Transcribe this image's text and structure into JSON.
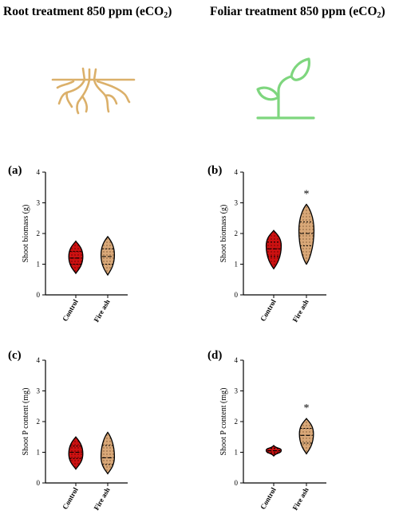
{
  "headings": {
    "left": {
      "text": "Root treatment 850 ppm (eCO",
      "sub": "2",
      "close": ")"
    },
    "right": {
      "text": "Foliar treatment 850 ppm (eCO",
      "sub": "2",
      "close": ")"
    }
  },
  "icons": {
    "left": "roots-icon",
    "right": "plant-sprout-icon"
  },
  "colors": {
    "control": "#cc1111",
    "fire_ash": "#d9a878",
    "root_icon": "#dbb06a",
    "plant_icon": "#7ed67e"
  },
  "chart_data": [
    {
      "panel": "(a)",
      "type": "violin",
      "ylabel": "Shoot biomass (g)",
      "ylim": [
        0,
        4
      ],
      "yticks": [
        "0",
        "1",
        "2",
        "3",
        "4"
      ],
      "categories": [
        "Control",
        "Fire ash"
      ],
      "series": [
        {
          "category": "Control",
          "min": 0.7,
          "max": 1.75,
          "median": 1.2,
          "q1": 1.0,
          "q3": 1.42,
          "widest": 1.25,
          "halfwidth": 0.42
        },
        {
          "category": "Fire ash",
          "min": 0.65,
          "max": 1.9,
          "median": 1.25,
          "q1": 1.0,
          "q3": 1.5,
          "widest": 1.3,
          "halfwidth": 0.4
        }
      ],
      "significance": ""
    },
    {
      "panel": "(b)",
      "type": "violin",
      "ylabel": "Shoot biomass (g)",
      "ylim": [
        0,
        4
      ],
      "yticks": [
        "0",
        "1",
        "2",
        "3",
        "4"
      ],
      "categories": [
        "Control",
        "Fire ash"
      ],
      "series": [
        {
          "category": "Control",
          "min": 0.85,
          "max": 2.1,
          "median": 1.5,
          "q1": 1.25,
          "q3": 1.72,
          "widest": 1.6,
          "halfwidth": 0.45
        },
        {
          "category": "Fire ash",
          "min": 1.0,
          "max": 2.95,
          "median": 2.0,
          "q1": 1.6,
          "q3": 2.38,
          "widest": 2.1,
          "halfwidth": 0.45
        }
      ],
      "significance": "*"
    },
    {
      "panel": "(c)",
      "type": "violin",
      "ylabel": "Shoot P content (mg)",
      "ylim": [
        0,
        4
      ],
      "yticks": [
        "0",
        "1",
        "2",
        "3",
        "4"
      ],
      "categories": [
        "Control",
        "Fire ash"
      ],
      "series": [
        {
          "category": "Control",
          "min": 0.45,
          "max": 1.5,
          "median": 1.0,
          "q1": 0.8,
          "q3": 1.2,
          "widest": 0.95,
          "halfwidth": 0.42
        },
        {
          "category": "Fire ash",
          "min": 0.3,
          "max": 1.65,
          "median": 0.82,
          "q1": 0.6,
          "q3": 1.22,
          "widest": 0.85,
          "halfwidth": 0.4
        }
      ],
      "significance": ""
    },
    {
      "panel": "(d)",
      "type": "violin",
      "ylabel": "Shoot P content (mg)",
      "ylim": [
        0,
        4
      ],
      "yticks": [
        "0",
        "1",
        "2",
        "3",
        "4"
      ],
      "categories": [
        "Control",
        "Fire ash"
      ],
      "series": [
        {
          "category": "Control",
          "min": 0.88,
          "max": 1.22,
          "median": 1.05,
          "q1": 0.98,
          "q3": 1.12,
          "widest": 1.06,
          "halfwidth": 0.45
        },
        {
          "category": "Fire ash",
          "min": 0.95,
          "max": 2.1,
          "median": 1.55,
          "q1": 1.3,
          "q3": 1.78,
          "widest": 1.6,
          "halfwidth": 0.42
        }
      ],
      "significance": "*"
    }
  ]
}
